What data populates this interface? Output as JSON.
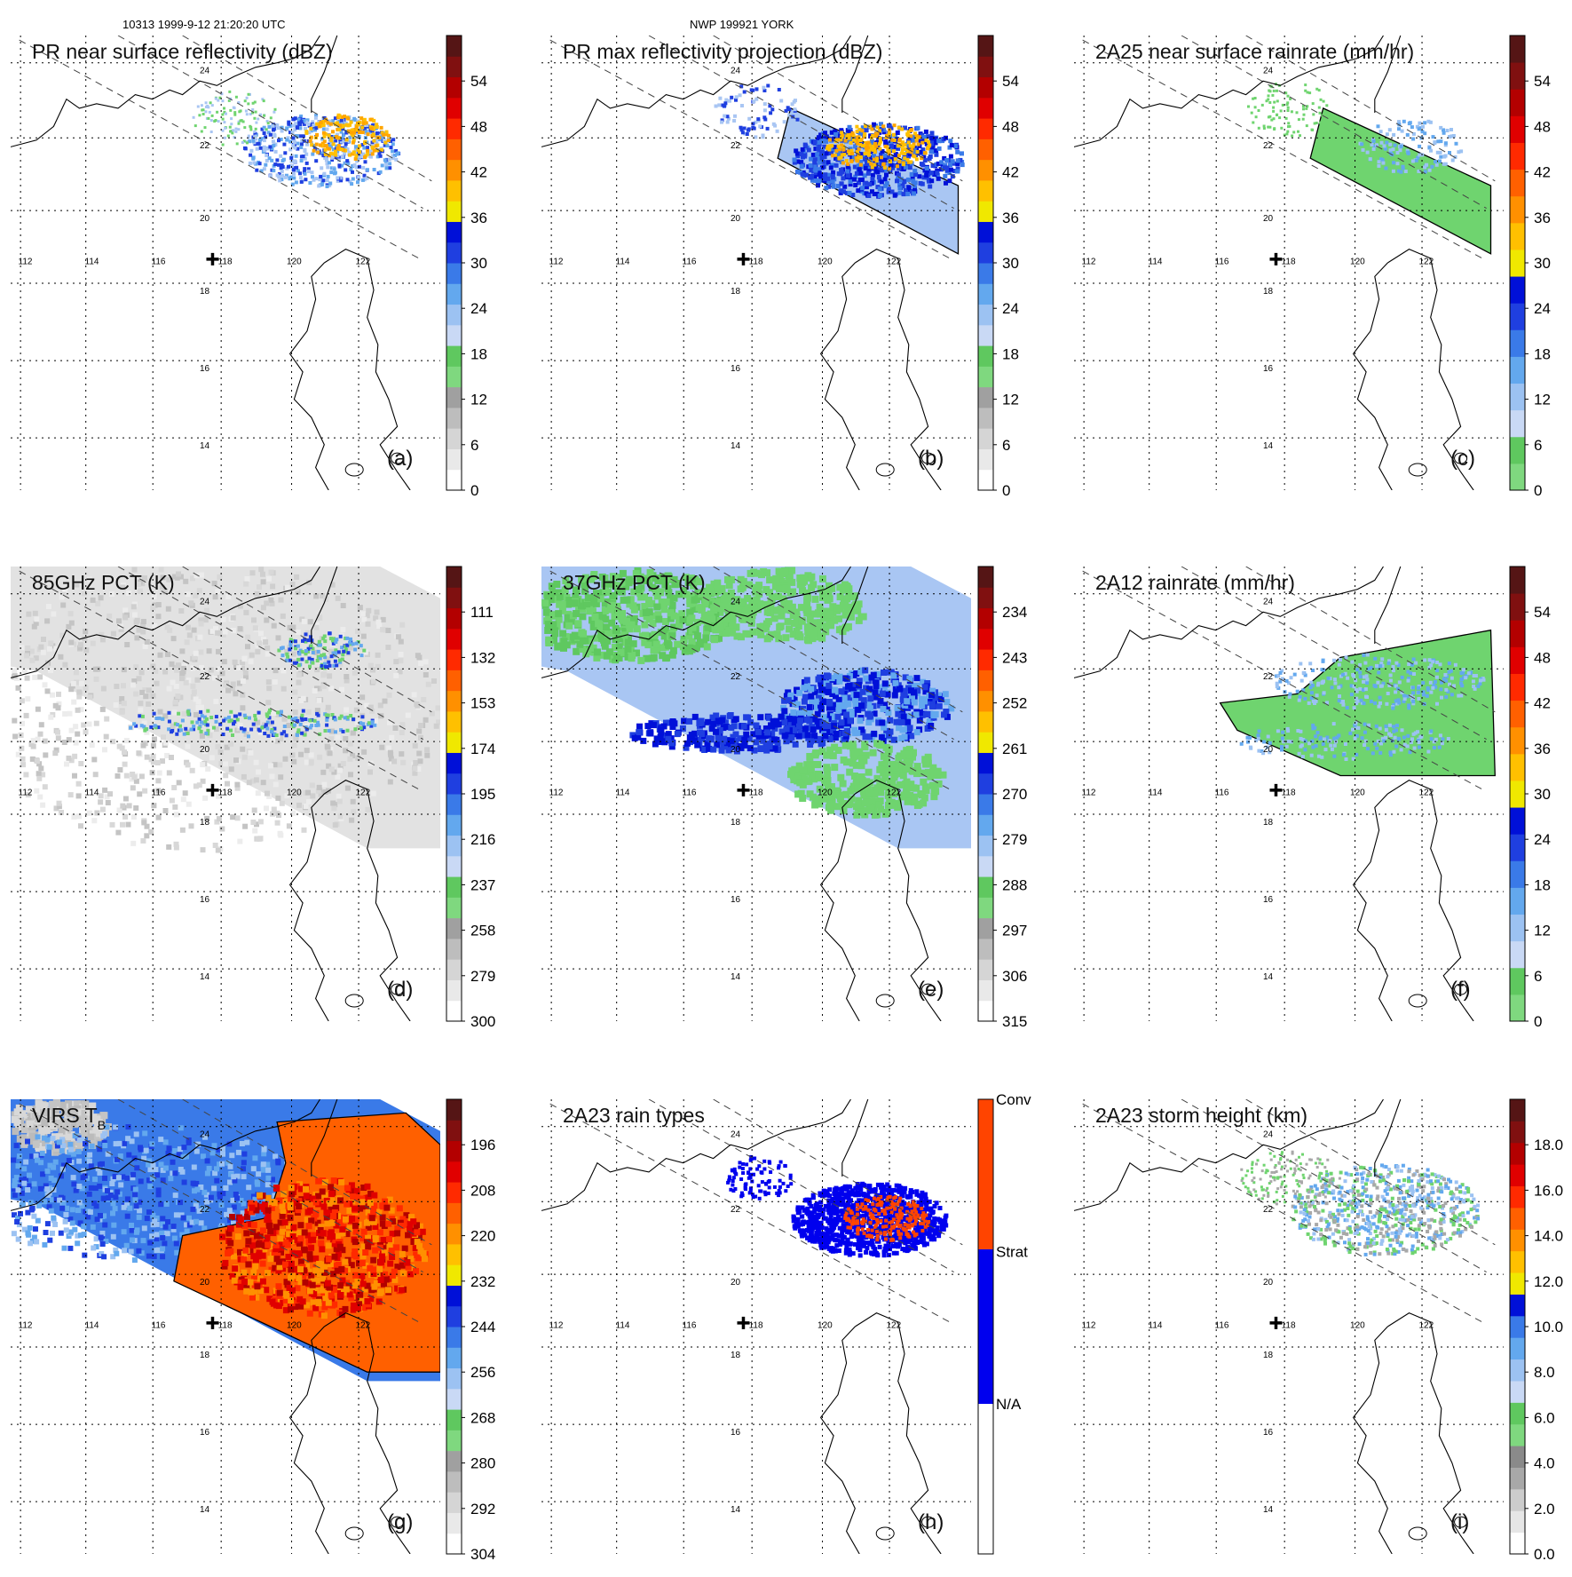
{
  "header": {
    "orbit_time": "10313 1999-9-12 21:20:20 UTC",
    "storm": "NWP 199921 YORK"
  },
  "lon_labels": [
    "112",
    "114",
    "116",
    "118",
    "120",
    "122"
  ],
  "lat_labels": [
    "24",
    "22",
    "20",
    "18",
    "16",
    "14"
  ],
  "panels": [
    {
      "id": "a",
      "title": "PR near surface reflectivity (dBZ)",
      "label": "(a)",
      "scale": "dbz",
      "colorbar": [
        "54",
        "48",
        "42",
        "36",
        "30",
        "24",
        "18",
        "12",
        "6",
        "0"
      ]
    },
    {
      "id": "b",
      "title": "PR max reflectivity projection (dBZ)",
      "label": "(b)",
      "scale": "dbz",
      "colorbar": [
        "54",
        "48",
        "42",
        "36",
        "30",
        "24",
        "18",
        "12",
        "6",
        "0"
      ]
    },
    {
      "id": "c",
      "title": "2A25 near surface rainrate (mm/hr)",
      "label": "(c)",
      "scale": "rain",
      "colorbar": [
        "54",
        "48",
        "42",
        "36",
        "30",
        "24",
        "18",
        "12",
        "6",
        "0"
      ]
    },
    {
      "id": "d",
      "title": "85GHz PCT (K)",
      "label": "(d)",
      "scale": "dbz",
      "colorbar": [
        "111",
        "132",
        "153",
        "174",
        "195",
        "216",
        "237",
        "258",
        "279",
        "300"
      ]
    },
    {
      "id": "e",
      "title": "37GHz PCT (K)",
      "label": "(e)",
      "scale": "dbz",
      "colorbar": [
        "234",
        "243",
        "252",
        "261",
        "270",
        "279",
        "288",
        "297",
        "306",
        "315"
      ]
    },
    {
      "id": "f",
      "title": "2A12 rainrate (mm/hr)",
      "label": "(f)",
      "scale": "rain",
      "colorbar": [
        "54",
        "48",
        "42",
        "36",
        "30",
        "24",
        "18",
        "12",
        "6",
        "0"
      ]
    },
    {
      "id": "g",
      "title": "VIRS T",
      "title_sub": "B",
      "label": "(g)",
      "scale": "dbz",
      "colorbar": [
        "196",
        "208",
        "220",
        "232",
        "244",
        "256",
        "268",
        "280",
        "292",
        "304"
      ]
    },
    {
      "id": "h",
      "title": "2A23 rain types",
      "label": "(h)",
      "scale": "types",
      "colorbar": [
        "Conv",
        "Strat",
        "N/A"
      ]
    },
    {
      "id": "i",
      "title": "2A23 storm height (km)",
      "label": "(i)",
      "scale": "height",
      "colorbar": [
        "18.0",
        "16.0",
        "14.0",
        "12.0",
        "10.0",
        "8.0",
        "6.0",
        "4.0",
        "2.0",
        "0.0"
      ]
    }
  ],
  "colors": {
    "dbz": [
      "#ffffff",
      "#e9e9e9",
      "#d5d5d5",
      "#bdbdbd",
      "#a0a0a0",
      "#7fd87f",
      "#5fc85f",
      "#c9d9f5",
      "#9cc2f2",
      "#63a8ee",
      "#3a7ae8",
      "#1f3fe0",
      "#0010d8",
      "#f0e800",
      "#ffc000",
      "#ff9000",
      "#ff6000",
      "#ff2a00",
      "#e00000",
      "#b30000",
      "#801010",
      "#551515"
    ],
    "rain": [
      "#7fd87f",
      "#5fc85f",
      "#c9d9f5",
      "#9cc2f2",
      "#63a8ee",
      "#3a7ae8",
      "#1f3fe0",
      "#0010d8",
      "#f0e800",
      "#ffc000",
      "#ff9000",
      "#ff6000",
      "#ff2a00",
      "#e00000",
      "#b30000",
      "#801010",
      "#551515"
    ],
    "height": [
      "#ffffff",
      "#e6e6e6",
      "#cccccc",
      "#a8a8a8",
      "#8a8a8a",
      "#7fd87f",
      "#5fc85f",
      "#c9d9f5",
      "#9cc2f2",
      "#63a8ee",
      "#3a7ae8",
      "#0010d8",
      "#f0e800",
      "#ffc000",
      "#ff9000",
      "#ff6000",
      "#ff2a00",
      "#e00000",
      "#b30000",
      "#801010",
      "#551515"
    ],
    "types": [
      "#ffffff",
      "#0000ee",
      "#ff4400"
    ],
    "rain_blue": "#1f3fe0",
    "rain_green": "#6fd46f",
    "rain_orange": "#ffa500",
    "light_blue": "#a9c6f3",
    "gray_swath": "#d9d9d9",
    "red": "#cc1a00"
  }
}
